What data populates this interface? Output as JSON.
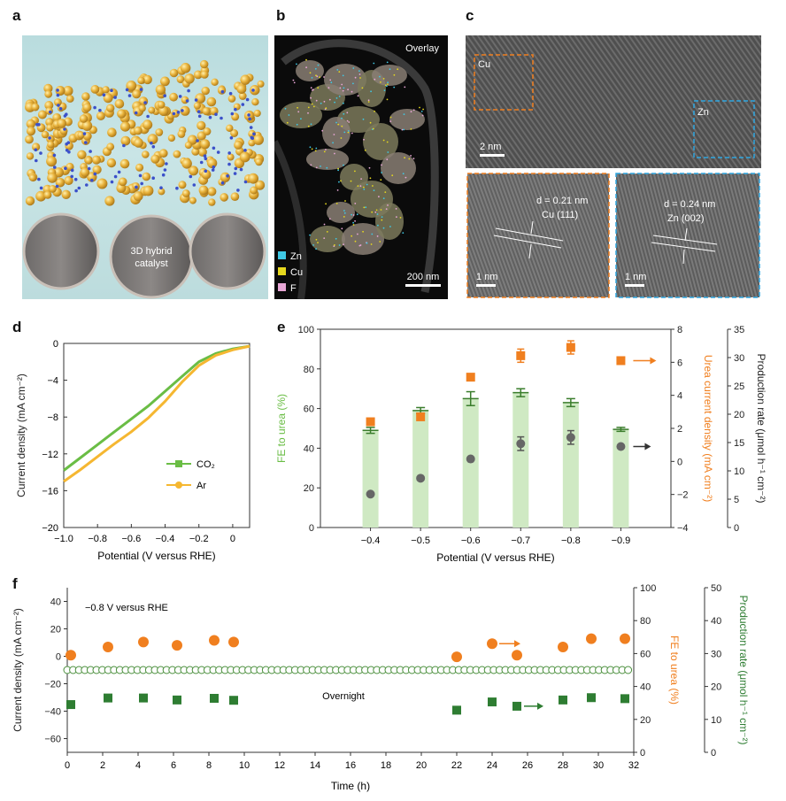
{
  "panels": {
    "a": {
      "label": "a",
      "catalyst_label_line1": "3D hybrid",
      "catalyst_label_line2": "catalyst"
    },
    "b": {
      "label": "b",
      "overlay": "Overlay",
      "legend": [
        {
          "name": "Zn",
          "color": "#3fc8e4"
        },
        {
          "name": "Cu",
          "color": "#e6d81e"
        },
        {
          "name": "F",
          "color": "#e8a7d6"
        }
      ],
      "scalebar": "200 nm"
    },
    "c": {
      "label": "c",
      "box_cu": "Cu",
      "box_zn": "Zn",
      "scalebar_main": "2 nm",
      "inset_left": {
        "d_line": "d = 0.21 nm",
        "plane": "Cu (111)",
        "scalebar": "1 nm"
      },
      "inset_right": {
        "d_line": "d = 0.24 nm",
        "plane": "Zn (002)",
        "scalebar": "1 nm"
      }
    },
    "d": {
      "label": "d"
    },
    "e": {
      "label": "e"
    },
    "f": {
      "label": "f",
      "condition": "−0.8 V versus RHE",
      "note": "Overnight"
    }
  },
  "colors": {
    "green": "#6abd45",
    "dark_green": "#2e7d32",
    "orange": "#f07f1f",
    "yellow": "#f5b731",
    "grey": "#666666",
    "bar_fill": "#cfe9c3"
  },
  "chart_data": [
    {
      "id": "d",
      "type": "line",
      "xlabel": "Potential (V versus RHE)",
      "ylabel": "Current density (mA cm⁻²)",
      "xlim": [
        -1.0,
        0.1
      ],
      "ylim": [
        -20,
        0
      ],
      "xticks": [
        "−1.0",
        "−0.8",
        "−0.6",
        "−0.4",
        "−0.2",
        "0"
      ],
      "yticks": [
        "0",
        "−4",
        "−8",
        "−12",
        "−16",
        "−20"
      ],
      "series": [
        {
          "name": "CO₂",
          "color": "#6abd45",
          "x": [
            -1.0,
            -0.9,
            -0.8,
            -0.7,
            -0.6,
            -0.5,
            -0.4,
            -0.3,
            -0.2,
            -0.1,
            0.0,
            0.1
          ],
          "y": [
            -13.8,
            -12.4,
            -11.0,
            -9.6,
            -8.2,
            -6.8,
            -5.2,
            -3.6,
            -2.0,
            -1.1,
            -0.6,
            -0.3
          ]
        },
        {
          "name": "Ar",
          "color": "#f5b731",
          "x": [
            -1.0,
            -0.9,
            -0.8,
            -0.7,
            -0.6,
            -0.5,
            -0.4,
            -0.3,
            -0.2,
            -0.1,
            0.0,
            0.1
          ],
          "y": [
            -15.0,
            -13.7,
            -12.3,
            -10.9,
            -9.6,
            -8.1,
            -6.3,
            -4.2,
            -2.4,
            -1.3,
            -0.7,
            -0.3
          ]
        }
      ]
    },
    {
      "id": "e",
      "type": "bar",
      "xlabel": "Potential (V versus RHE)",
      "ylabel_left": "FE to urea (%)",
      "ylabel_mid": "Urea current density (mA cm⁻²)",
      "ylabel_right": "Production rate (μmol h⁻¹ cm⁻²)",
      "categories": [
        "−0.4",
        "−0.5",
        "−0.6",
        "−0.7",
        "−0.8",
        "−0.9"
      ],
      "ylim_left": [
        0,
        100
      ],
      "ylim_mid": [
        -4,
        8
      ],
      "ylim_right": [
        0,
        35
      ],
      "yticks_left": [
        "0",
        "20",
        "40",
        "60",
        "80",
        "100"
      ],
      "yticks_mid": [
        "−4",
        "−2",
        "0",
        "2",
        "4",
        "6",
        "8"
      ],
      "yticks_right": [
        "0",
        "5",
        "10",
        "15",
        "20",
        "25",
        "30",
        "35"
      ],
      "series": [
        {
          "name": "FE to urea",
          "axis": "left",
          "values": [
            49,
            59,
            65,
            68,
            63,
            49.5
          ],
          "errors": [
            1.5,
            1.5,
            3.5,
            2.0,
            2.0,
            1.0
          ]
        },
        {
          "name": "Urea current density",
          "axis": "mid",
          "values": [
            2.4,
            2.7,
            5.1,
            6.4,
            6.9,
            6.1
          ],
          "errors": [
            0,
            0,
            0,
            0.4,
            0.4,
            0
          ]
        },
        {
          "name": "Production rate",
          "axis": "right",
          "values": [
            5.9,
            8.7,
            12.1,
            14.8,
            15.9,
            14.3
          ],
          "errors": [
            0,
            0,
            0,
            1.2,
            1.2,
            0
          ]
        }
      ]
    },
    {
      "id": "f",
      "type": "scatter",
      "xlabel": "Time (h)",
      "ylabel_left": "Current density (mA cm⁻²)",
      "ylabel_mid": "FE to urea (%)",
      "ylabel_right": "Production rate (μmol h⁻¹ cm⁻²)",
      "xlim": [
        0,
        32
      ],
      "ylim_left": [
        -70,
        50
      ],
      "ylim_mid": [
        0,
        100
      ],
      "ylim_right": [
        0,
        50
      ],
      "xticks": [
        "0",
        "2",
        "4",
        "6",
        "8",
        "10",
        "12",
        "14",
        "16",
        "18",
        "20",
        "22",
        "24",
        "26",
        "28",
        "30",
        "32"
      ],
      "yticks_left": [
        "−60",
        "−40",
        "−20",
        "0",
        "20",
        "40"
      ],
      "yticks_mid": [
        "0",
        "20",
        "40",
        "60",
        "80",
        "100"
      ],
      "yticks_right": [
        "0",
        "10",
        "20",
        "30",
        "40",
        "50"
      ],
      "series": [
        {
          "name": "Current density",
          "axis": "left",
          "x_start": 0,
          "x_end": 32,
          "x_gap": [
            20,
            22
          ],
          "y": -10
        },
        {
          "name": "FE to urea",
          "axis": "mid",
          "x": [
            0.2,
            2.3,
            4.3,
            6.2,
            8.3,
            9.4,
            22,
            24,
            25.4,
            28,
            29.6,
            31.5
          ],
          "y": [
            59,
            64,
            67,
            65,
            68,
            67,
            58,
            66,
            59,
            64,
            69,
            69
          ]
        },
        {
          "name": "Production rate",
          "axis": "right",
          "x": [
            0.2,
            2.3,
            4.3,
            6.2,
            8.3,
            9.4,
            22,
            24,
            25.4,
            28,
            29.6,
            31.5
          ],
          "y": [
            14.5,
            16.5,
            16.5,
            15.9,
            16.4,
            15.8,
            12.8,
            15.3,
            14.0,
            15.9,
            16.6,
            16.3
          ]
        }
      ]
    }
  ]
}
